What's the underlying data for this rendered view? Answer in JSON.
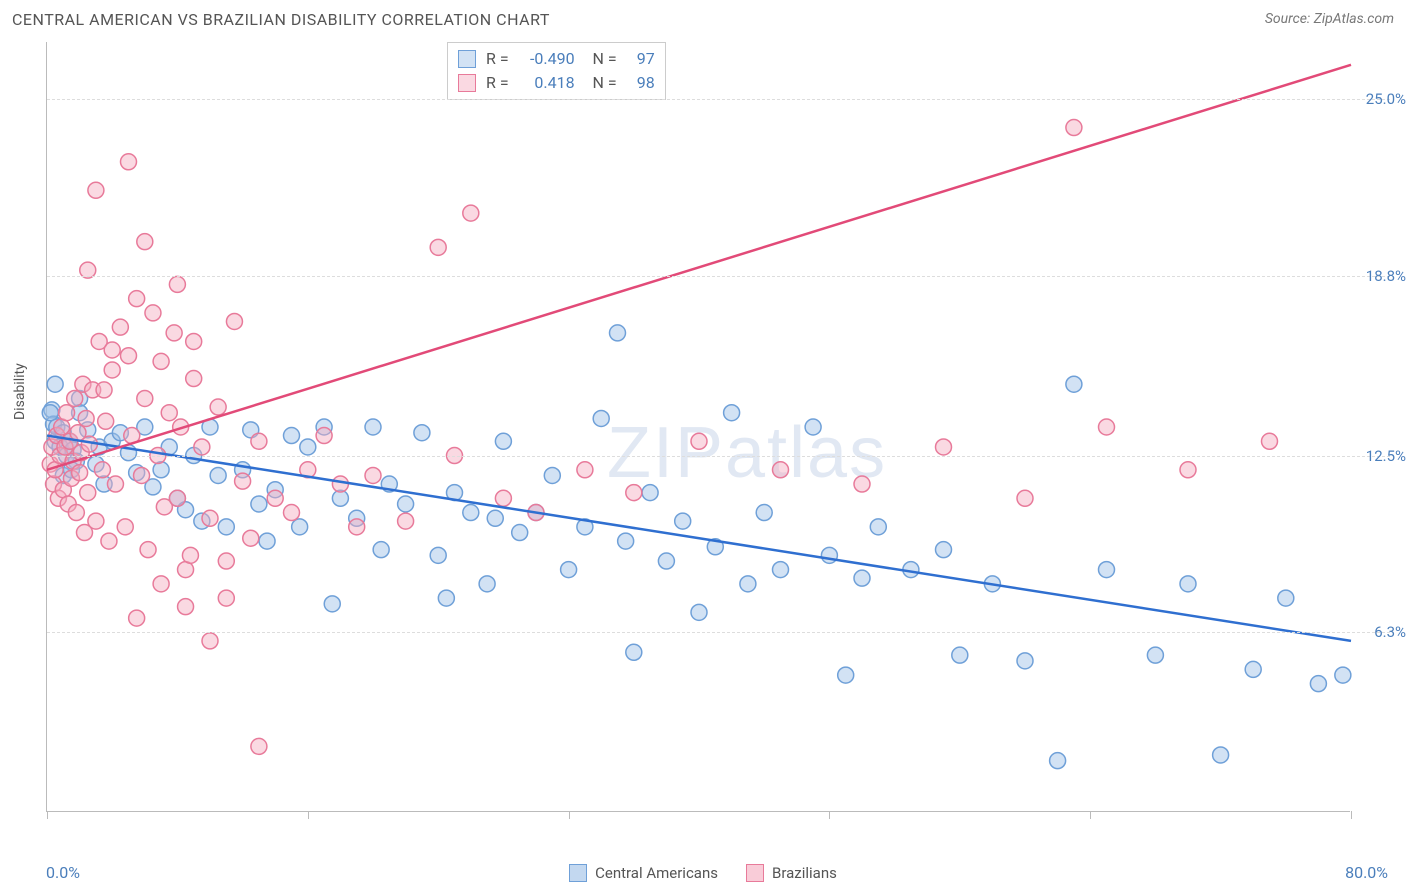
{
  "title": "CENTRAL AMERICAN VS BRAZILIAN DISABILITY CORRELATION CHART",
  "source": "Source: ZipAtlas.com",
  "watermark_bold": "ZIP",
  "watermark_light": "atlas",
  "yaxis_label": "Disability",
  "chart": {
    "type": "scatter",
    "xlim": [
      0,
      80
    ],
    "ylim": [
      0,
      27
    ],
    "xtick_positions": [
      0,
      16,
      32,
      48,
      64,
      80
    ],
    "ytick_positions": [
      6.3,
      12.5,
      18.8,
      25.0
    ],
    "ytick_labels": [
      "6.3%",
      "12.5%",
      "18.8%",
      "25.0%"
    ],
    "x_left_label": "0.0%",
    "x_right_label": "80.0%",
    "background_color": "#ffffff",
    "grid_color": "#dddddd",
    "axis_color": "#bbbbbb",
    "tick_label_color": "#4a7ebb",
    "marker_radius": 8,
    "marker_stroke_width": 1.5,
    "trend_line_width": 2.5,
    "series": [
      {
        "name": "Central Americans",
        "fill": "rgba(155,190,230,0.45)",
        "stroke": "#6fa0d8",
        "trend_color": "#2f6fd0",
        "R": "-0.490",
        "N": "97",
        "trend": {
          "x1": 0,
          "y1": 13.2,
          "x2": 80,
          "y2": 6.0
        },
        "points": [
          [
            0.3,
            14.1
          ],
          [
            0.4,
            13.6
          ],
          [
            0.5,
            13.0
          ],
          [
            0.6,
            13.5
          ],
          [
            0.8,
            12.8
          ],
          [
            1.0,
            13.3
          ],
          [
            1.2,
            12.5
          ],
          [
            1.4,
            13.0
          ],
          [
            1.6,
            12.7
          ],
          [
            1.8,
            12.3
          ],
          [
            2.0,
            14.5
          ],
          [
            2.0,
            14.0
          ],
          [
            0.2,
            14.0
          ],
          [
            0.5,
            15.0
          ],
          [
            1.0,
            11.8
          ],
          [
            1.5,
            12.0
          ],
          [
            2.5,
            13.4
          ],
          [
            3.0,
            12.2
          ],
          [
            3.2,
            12.8
          ],
          [
            3.5,
            11.5
          ],
          [
            4.0,
            13.0
          ],
          [
            4.5,
            13.3
          ],
          [
            5.0,
            12.6
          ],
          [
            5.5,
            11.9
          ],
          [
            6.0,
            13.5
          ],
          [
            6.5,
            11.4
          ],
          [
            7.0,
            12.0
          ],
          [
            7.5,
            12.8
          ],
          [
            8.0,
            11.0
          ],
          [
            8.5,
            10.6
          ],
          [
            9.0,
            12.5
          ],
          [
            9.5,
            10.2
          ],
          [
            10.0,
            13.5
          ],
          [
            10.5,
            11.8
          ],
          [
            11.0,
            10.0
          ],
          [
            12.0,
            12.0
          ],
          [
            12.5,
            13.4
          ],
          [
            13.0,
            10.8
          ],
          [
            13.5,
            9.5
          ],
          [
            14.0,
            11.3
          ],
          [
            15.0,
            13.2
          ],
          [
            15.5,
            10.0
          ],
          [
            16.0,
            12.8
          ],
          [
            17.0,
            13.5
          ],
          [
            17.5,
            7.3
          ],
          [
            18.0,
            11.0
          ],
          [
            19.0,
            10.3
          ],
          [
            20.0,
            13.5
          ],
          [
            20.5,
            9.2
          ],
          [
            21.0,
            11.5
          ],
          [
            22.0,
            10.8
          ],
          [
            23.0,
            13.3
          ],
          [
            24.0,
            9.0
          ],
          [
            24.5,
            7.5
          ],
          [
            25.0,
            11.2
          ],
          [
            26.0,
            10.5
          ],
          [
            27.0,
            8.0
          ],
          [
            27.5,
            10.3
          ],
          [
            28.0,
            13.0
          ],
          [
            29.0,
            9.8
          ],
          [
            30.0,
            10.5
          ],
          [
            31.0,
            11.8
          ],
          [
            32.0,
            8.5
          ],
          [
            33.0,
            10.0
          ],
          [
            34.0,
            13.8
          ],
          [
            35.0,
            16.8
          ],
          [
            35.5,
            9.5
          ],
          [
            36.0,
            5.6
          ],
          [
            37.0,
            11.2
          ],
          [
            38.0,
            8.8
          ],
          [
            39.0,
            10.2
          ],
          [
            40.0,
            7.0
          ],
          [
            41.0,
            9.3
          ],
          [
            42.0,
            14.0
          ],
          [
            43.0,
            8.0
          ],
          [
            44.0,
            10.5
          ],
          [
            45.0,
            8.5
          ],
          [
            47.0,
            13.5
          ],
          [
            48.0,
            9.0
          ],
          [
            49.0,
            4.8
          ],
          [
            50.0,
            8.2
          ],
          [
            51.0,
            10.0
          ],
          [
            53.0,
            8.5
          ],
          [
            55.0,
            9.2
          ],
          [
            56.0,
            5.5
          ],
          [
            58.0,
            8.0
          ],
          [
            60.0,
            5.3
          ],
          [
            62.0,
            1.8
          ],
          [
            63.0,
            15.0
          ],
          [
            65.0,
            8.5
          ],
          [
            68.0,
            5.5
          ],
          [
            70.0,
            8.0
          ],
          [
            72.0,
            2.0
          ],
          [
            74.0,
            5.0
          ],
          [
            76.0,
            7.5
          ],
          [
            78.0,
            4.5
          ],
          [
            79.5,
            4.8
          ]
        ]
      },
      {
        "name": "Brazilians",
        "fill": "rgba(245,170,190,0.45)",
        "stroke": "#e87a9a",
        "trend_color": "#e24a78",
        "R": "0.418",
        "N": "98",
        "trend": {
          "x1": 0,
          "y1": 12.0,
          "x2": 80,
          "y2": 26.2
        },
        "points": [
          [
            0.2,
            12.2
          ],
          [
            0.3,
            12.8
          ],
          [
            0.4,
            11.5
          ],
          [
            0.5,
            12.0
          ],
          [
            0.6,
            13.2
          ],
          [
            0.7,
            11.0
          ],
          [
            0.8,
            12.5
          ],
          [
            0.9,
            13.5
          ],
          [
            1.0,
            11.3
          ],
          [
            1.1,
            12.8
          ],
          [
            1.2,
            14.0
          ],
          [
            1.3,
            10.8
          ],
          [
            1.4,
            13.0
          ],
          [
            1.5,
            11.7
          ],
          [
            1.6,
            12.3
          ],
          [
            1.7,
            14.5
          ],
          [
            1.8,
            10.5
          ],
          [
            1.9,
            13.3
          ],
          [
            2.0,
            11.9
          ],
          [
            2.1,
            12.6
          ],
          [
            2.2,
            15.0
          ],
          [
            2.3,
            9.8
          ],
          [
            2.4,
            13.8
          ],
          [
            2.5,
            11.2
          ],
          [
            2.6,
            12.9
          ],
          [
            2.8,
            14.8
          ],
          [
            3.0,
            10.2
          ],
          [
            3.2,
            16.5
          ],
          [
            3.4,
            12.0
          ],
          [
            3.6,
            13.7
          ],
          [
            3.8,
            9.5
          ],
          [
            4.0,
            15.5
          ],
          [
            4.2,
            11.5
          ],
          [
            4.5,
            17.0
          ],
          [
            4.8,
            10.0
          ],
          [
            5.0,
            16.0
          ],
          [
            5.2,
            13.2
          ],
          [
            5.5,
            18.0
          ],
          [
            5.8,
            11.8
          ],
          [
            6.0,
            14.5
          ],
          [
            6.2,
            9.2
          ],
          [
            6.5,
            17.5
          ],
          [
            6.8,
            12.5
          ],
          [
            7.0,
            15.8
          ],
          [
            7.2,
            10.7
          ],
          [
            7.5,
            14.0
          ],
          [
            7.8,
            16.8
          ],
          [
            8.0,
            11.0
          ],
          [
            8.2,
            13.5
          ],
          [
            8.5,
            8.5
          ],
          [
            8.8,
            9.0
          ],
          [
            9.0,
            15.2
          ],
          [
            9.5,
            12.8
          ],
          [
            10.0,
            10.3
          ],
          [
            10.5,
            14.2
          ],
          [
            11.0,
            8.8
          ],
          [
            11.5,
            17.2
          ],
          [
            12.0,
            11.6
          ],
          [
            12.5,
            9.6
          ],
          [
            13.0,
            13.0
          ],
          [
            3.0,
            21.8
          ],
          [
            5.0,
            22.8
          ],
          [
            4.0,
            16.2
          ],
          [
            6.0,
            20.0
          ],
          [
            2.5,
            19.0
          ],
          [
            8.0,
            18.5
          ],
          [
            9.0,
            16.5
          ],
          [
            3.5,
            14.8
          ],
          [
            7.0,
            8.0
          ],
          [
            8.5,
            7.2
          ],
          [
            5.5,
            6.8
          ],
          [
            10.0,
            6.0
          ],
          [
            11.0,
            7.5
          ],
          [
            13.0,
            2.3
          ],
          [
            14.0,
            11.0
          ],
          [
            15.0,
            10.5
          ],
          [
            16.0,
            12.0
          ],
          [
            17.0,
            13.2
          ],
          [
            18.0,
            11.5
          ],
          [
            19.0,
            10.0
          ],
          [
            20.0,
            11.8
          ],
          [
            22.0,
            10.2
          ],
          [
            24.0,
            19.8
          ],
          [
            26.0,
            21.0
          ],
          [
            25.0,
            12.5
          ],
          [
            28.0,
            11.0
          ],
          [
            30.0,
            10.5
          ],
          [
            33.0,
            12.0
          ],
          [
            36.0,
            11.2
          ],
          [
            40.0,
            13.0
          ],
          [
            45.0,
            12.0
          ],
          [
            50.0,
            11.5
          ],
          [
            55.0,
            12.8
          ],
          [
            60.0,
            11.0
          ],
          [
            63.0,
            24.0
          ],
          [
            65.0,
            13.5
          ],
          [
            70.0,
            12.0
          ],
          [
            75.0,
            13.0
          ]
        ]
      }
    ]
  },
  "bottom_legend": [
    {
      "label": "Central Americans",
      "fill": "rgba(155,190,230,0.6)",
      "stroke": "#6fa0d8"
    },
    {
      "label": "Brazilians",
      "fill": "rgba(245,170,190,0.6)",
      "stroke": "#e87a9a"
    }
  ]
}
